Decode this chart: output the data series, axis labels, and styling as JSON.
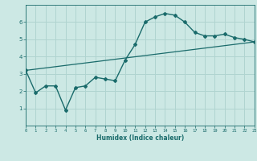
{
  "xlabel": "Humidex (Indice chaleur)",
  "ylabel": "",
  "background_color": "#cce8e4",
  "grid_color": "#b0d4d0",
  "line_color": "#1a6b6b",
  "x_data": [
    0,
    1,
    2,
    3,
    4,
    5,
    6,
    7,
    8,
    9,
    10,
    11,
    12,
    13,
    14,
    15,
    16,
    17,
    18,
    19,
    20,
    21,
    22,
    23
  ],
  "y_data": [
    3.2,
    1.9,
    2.3,
    2.3,
    0.9,
    2.2,
    2.3,
    2.8,
    2.7,
    2.6,
    3.8,
    4.7,
    6.0,
    6.3,
    6.5,
    6.4,
    6.0,
    5.4,
    5.2,
    5.2,
    5.3,
    5.1,
    5.0,
    4.85
  ],
  "xlim": [
    0,
    23
  ],
  "ylim": [
    0,
    7
  ],
  "yticks": [
    1,
    2,
    3,
    4,
    5,
    6
  ],
  "xticks": [
    0,
    1,
    2,
    3,
    4,
    5,
    6,
    7,
    8,
    9,
    10,
    11,
    12,
    13,
    14,
    15,
    16,
    17,
    18,
    19,
    20,
    21,
    22,
    23
  ],
  "trend_x": [
    0,
    23
  ],
  "trend_y": [
    3.2,
    4.85
  ]
}
